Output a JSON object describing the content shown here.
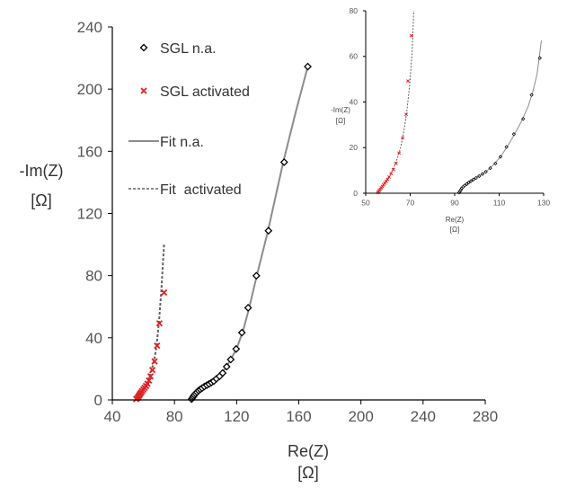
{
  "chart_data": [
    {
      "type": "scatter",
      "title": "",
      "xlabel": "Re(Z)",
      "xlabel_unit": "[Ω]",
      "ylabel": "-Im(Z)",
      "ylabel_unit": "[Ω]",
      "xlim": [
        40,
        280
      ],
      "ylim": [
        0,
        240
      ],
      "xticks": [
        40,
        80,
        120,
        160,
        200,
        240,
        280
      ],
      "yticks": [
        0,
        40,
        80,
        120,
        160,
        200,
        240
      ],
      "grid": false,
      "legend_position": "top-left",
      "series": [
        {
          "name": "SGL n.a.",
          "kind": "markers",
          "marker": "diamond",
          "color": "#000000",
          "x": [
            91,
            91.6,
            92.2,
            92.8,
            93.6,
            94.5,
            95.5,
            96.6,
            97.8,
            99.2,
            100.8,
            102.3,
            103.8,
            105.3,
            107,
            109,
            111,
            113.6,
            116.2,
            119.7,
            123.4,
            127.4,
            132.7,
            140.5,
            150.6,
            165.8
          ],
          "y": [
            0.5,
            1.4,
            2.3,
            3.2,
            4.1,
            5,
            6,
            6.8,
            7.6,
            8.6,
            9.5,
            10.3,
            11.2,
            12.1,
            13.6,
            15.2,
            17.3,
            21.4,
            26,
            32.8,
            43.3,
            59.3,
            79.9,
            108.9,
            153,
            214.5
          ]
        },
        {
          "name": "SGL activated",
          "kind": "markers",
          "marker": "x",
          "color": "#e02020",
          "x": [
            55.4,
            56.2,
            56.8,
            57.3,
            57.9,
            58.5,
            59.2,
            60,
            60.8,
            61.7,
            62.6,
            63.6,
            64.6,
            65.8,
            67.2,
            68.8,
            70.3,
            73.3
          ],
          "y": [
            0.5,
            1.3,
            2.1,
            3,
            3.9,
            4.8,
            5.7,
            6.7,
            7.8,
            9,
            10.4,
            12.5,
            15.2,
            19.2,
            24.8,
            34.9,
            49.3,
            69.1
          ]
        },
        {
          "name": "Fit n.a.",
          "kind": "line",
          "style": "solid",
          "color": "#8c8c8c",
          "x": [
            91,
            92,
            93.5,
            95.5,
            98,
            101,
            104.5,
            108,
            112,
            116,
            120,
            124,
            128,
            133,
            140,
            150,
            158,
            165.8
          ],
          "y": [
            0.2,
            1.9,
            3.8,
            5.8,
            8,
            9.8,
            12,
            14.6,
            19.2,
            25.6,
            33,
            44,
            59,
            80,
            108,
            153,
            185,
            214.5
          ]
        },
        {
          "name": "Fit  activated",
          "kind": "line",
          "style": "dashed",
          "color": "#606060",
          "x": [
            55.2,
            56.5,
            58,
            60,
            62,
            64,
            65.5,
            67,
            68.5,
            70,
            71.5,
            73.3
          ],
          "y": [
            0.2,
            2,
            4.5,
            7.2,
            10.2,
            15,
            20,
            26,
            35,
            50,
            70,
            100.5
          ]
        }
      ]
    },
    {
      "type": "scatter",
      "title": "",
      "xlabel": "Re(Z)",
      "xlabel_unit": "[Ω]",
      "ylabel": "-Im(Z)",
      "ylabel_unit": "[Ω]",
      "xlim": [
        50,
        130
      ],
      "ylim": [
        0,
        80
      ],
      "xticks": [
        50,
        70,
        90,
        110,
        130
      ],
      "yticks": [
        0,
        20,
        40,
        60,
        80
      ],
      "grid": false,
      "legend_position": "none",
      "series": [
        {
          "name": "SGL n.a.",
          "kind": "markers",
          "marker": "diamond",
          "color": "#000000",
          "x": [
            92,
            92.4,
            92.8,
            93.2,
            93.8,
            94.5,
            95.4,
            96.3,
            97.3,
            98.4,
            99.6,
            101,
            102.5,
            104,
            106,
            108.3,
            110.6,
            113.3,
            116.6,
            120.8,
            124.6,
            128.3
          ],
          "y": [
            0.3,
            0.9,
            1.5,
            2.2,
            2.8,
            3.4,
            4,
            4.7,
            5.3,
            6,
            6.7,
            7.5,
            8.4,
            9.4,
            11,
            13,
            16,
            20.3,
            25.9,
            32.6,
            43.1,
            59.3
          ]
        },
        {
          "name": "SGL activated",
          "kind": "markers",
          "marker": "x",
          "color": "#e02020",
          "x": [
            55.4,
            55.8,
            56.2,
            56.6,
            57,
            57.5,
            58,
            58.6,
            59.2,
            59.8,
            60.5,
            61.4,
            62.4,
            63.6,
            65,
            66.6,
            68.2,
            69,
            70.5
          ],
          "y": [
            0.3,
            0.8,
            1.3,
            1.8,
            2.4,
            3,
            3.7,
            4.4,
            5.2,
            6.1,
            7.1,
            8.6,
            10.4,
            13.1,
            17.6,
            24.2,
            34.6,
            49.2,
            69.1
          ]
        },
        {
          "name": "Fit n.a.",
          "kind": "line",
          "style": "solid",
          "color": "#8c8c8c",
          "x": [
            92,
            93,
            94.5,
            96.5,
            99,
            102,
            105,
            108,
            111,
            114,
            117,
            120,
            123,
            125,
            127,
            129
          ],
          "y": [
            0.1,
            1.8,
            3.3,
            4.8,
            6.5,
            8.2,
            10.2,
            13,
            16.5,
            21,
            26,
            31.5,
            38,
            44,
            52,
            67
          ]
        },
        {
          "name": "Fit  activated",
          "kind": "line",
          "style": "dashed",
          "color": "#606060",
          "x": [
            55.2,
            56,
            57,
            58.2,
            59.6,
            61,
            62.6,
            64.2,
            65.8,
            67.2,
            68.5,
            69.7,
            70.8,
            71.6
          ],
          "y": [
            0.1,
            1.2,
            2.5,
            4,
            6,
            8.2,
            11.2,
            15.2,
            20.5,
            27.5,
            36,
            47,
            61,
            80
          ]
        }
      ]
    }
  ]
}
